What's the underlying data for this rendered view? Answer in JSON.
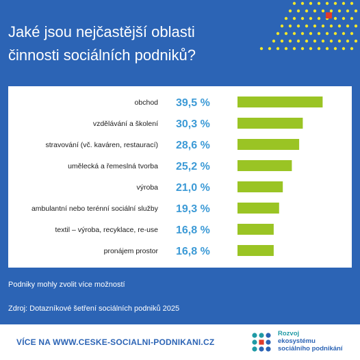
{
  "title_lines": [
    "Jaké jsou nejčastější oblasti",
    "činnosti sociálních podniků?"
  ],
  "chart_data": {
    "type": "bar",
    "orientation": "horizontal",
    "categories": [
      "obchod",
      "vzdělávání a školení",
      "stravování (vč. kaváren, restaurací)",
      "umělecká a řemeslná tvorba",
      "výroba",
      "ambulantní nebo terénní sociální služby",
      "textil – výroba, recyklace, re-use",
      "pronájem prostor"
    ],
    "value_labels": [
      "39,5 %",
      "30,3 %",
      "28,6 %",
      "25,2 %",
      "21,0 %",
      "19,3 %",
      "16,8 %",
      "16,8 %"
    ],
    "values": [
      39.5,
      30.3,
      28.6,
      25.2,
      21.0,
      19.3,
      16.8,
      16.8
    ],
    "unit": "%",
    "xlim": [
      0,
      40
    ],
    "grid": false,
    "bar_color": "#9ac424",
    "value_label_color": "#3c9ad6"
  },
  "notes": {
    "multiple_choice": "Podniky mohly zvolit více možností",
    "source": "Zdroj: Dotazníkové šetření sociálních podniků 2025"
  },
  "footer": {
    "url_text": "VÍCE NA WWW.CESKE-SOCIALNI-PODNIKANI.CZ",
    "logo_lines": [
      "Rozvoj",
      "ekosystému",
      "sociálního podnikání"
    ]
  },
  "colors": {
    "background": "#2c64b5",
    "accent_yellow": "#f2e62a",
    "accent_red": "#e03a2a",
    "logo_teal": "#1f9aa5",
    "logo_blue": "#2c64b5",
    "logo_red": "#e03a2a"
  }
}
